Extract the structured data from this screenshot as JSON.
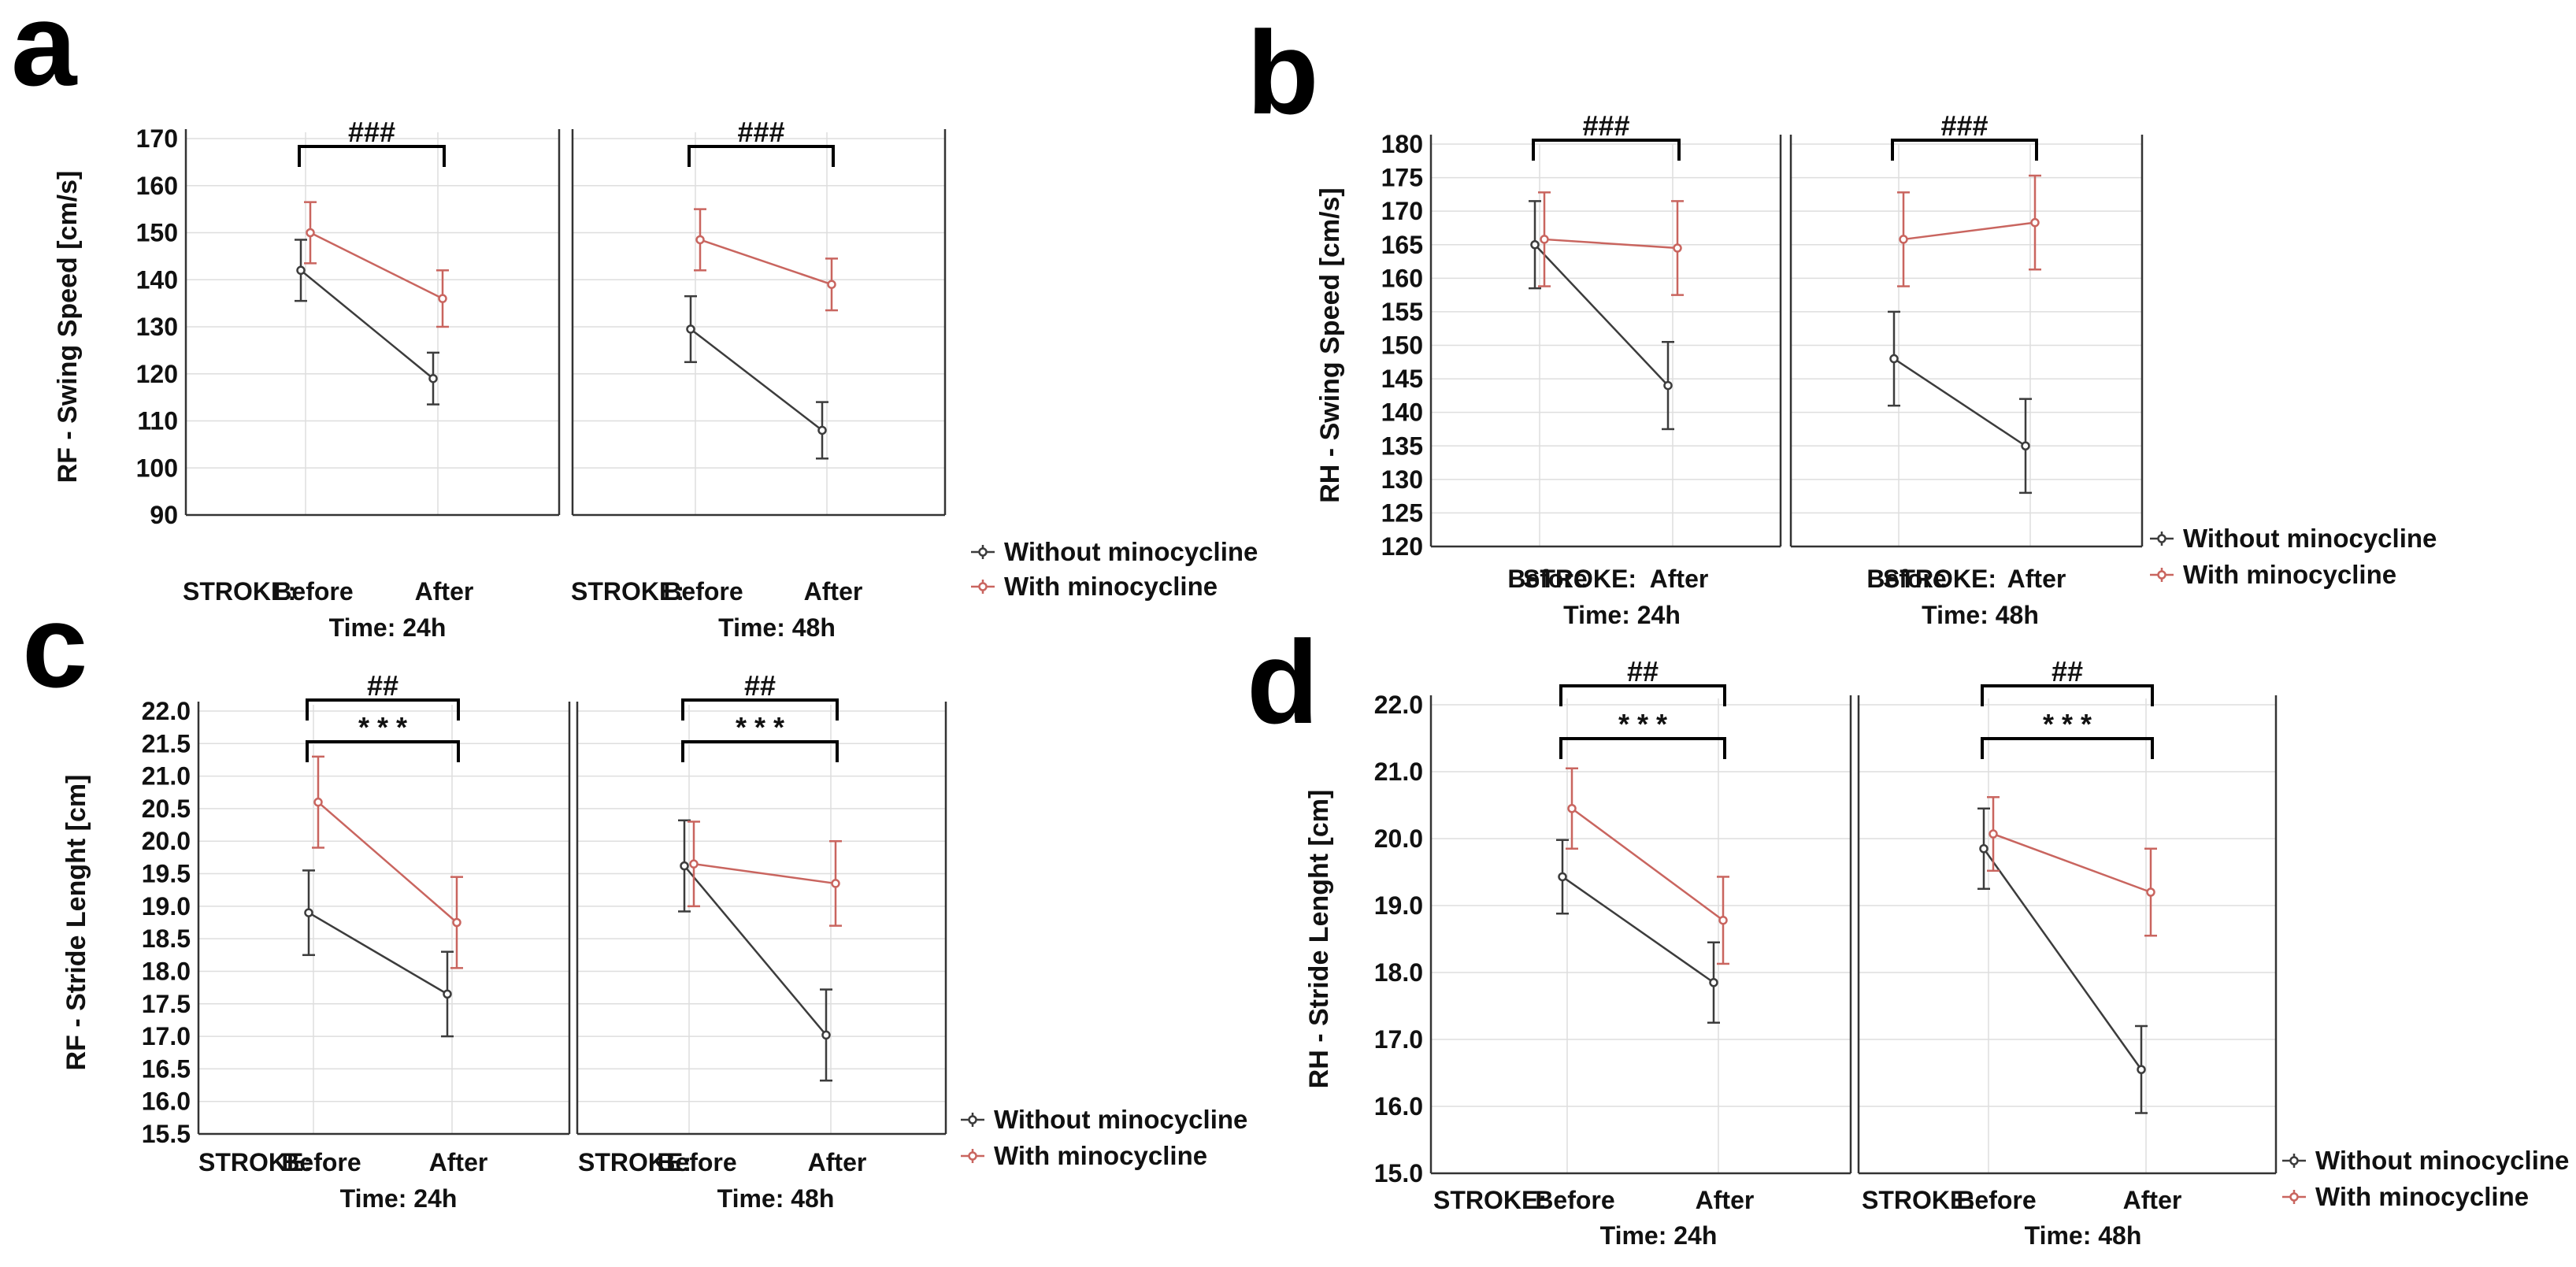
{
  "colors": {
    "without": "#3c3c3c",
    "with": "#c9655f",
    "grid": "#dedede",
    "axis": "#333333",
    "text": "#111111"
  },
  "legend": {
    "without": "Without minocycline",
    "with": "With minocycline"
  },
  "chart_data": [
    {
      "panel": "a",
      "type": "line",
      "ylabel": "RF - Swing Speed [cm/s]",
      "ylim": [
        90,
        170
      ],
      "yticks": [
        "90",
        "100",
        "110",
        "120",
        "130",
        "140",
        "150",
        "160",
        "170"
      ],
      "xlabel_prefix": "STROKE:",
      "categories": [
        "Before",
        "After"
      ],
      "subplots": [
        {
          "time_label": "Time: 24h",
          "series": [
            {
              "name": "Without minocycline",
              "values": [
                142,
                119
              ],
              "err": [
                6.5,
                5.5
              ]
            },
            {
              "name": "With minocycline",
              "values": [
                150,
                136
              ],
              "err": [
                6.5,
                6
              ]
            }
          ],
          "brackets": [
            "###"
          ]
        },
        {
          "time_label": "Time: 48h",
          "series": [
            {
              "name": "Without minocycline",
              "values": [
                129.5,
                108
              ],
              "err": [
                7,
                6
              ]
            },
            {
              "name": "With minocycline",
              "values": [
                148.5,
                139
              ],
              "err": [
                6.5,
                5.5
              ]
            }
          ],
          "brackets": [
            "###"
          ]
        }
      ]
    },
    {
      "panel": "b",
      "type": "line",
      "ylabel": "RH - Swing Speed [cm/s]",
      "ylim": [
        120,
        180
      ],
      "yticks": [
        "120",
        "125",
        "130",
        "135",
        "140",
        "145",
        "150",
        "155",
        "160",
        "165",
        "170",
        "175",
        "180"
      ],
      "xlabel_prefix": "STROKE:",
      "categories": [
        "Before",
        "After"
      ],
      "subplots": [
        {
          "time_label": "Time: 24h",
          "series": [
            {
              "name": "Without minocycline",
              "values": [
                165,
                144
              ],
              "err": [
                6.5,
                6.5
              ]
            },
            {
              "name": "With minocycline",
              "values": [
                165.8,
                164.5
              ],
              "err": [
                7,
                7
              ]
            }
          ],
          "brackets": [
            "###"
          ]
        },
        {
          "time_label": "Time: 48h",
          "series": [
            {
              "name": "Without minocycline",
              "values": [
                148,
                135
              ],
              "err": [
                7,
                7
              ]
            },
            {
              "name": "With minocycline",
              "values": [
                165.8,
                168.3
              ],
              "err": [
                7,
                7
              ]
            }
          ],
          "brackets": [
            "###"
          ]
        }
      ]
    },
    {
      "panel": "c",
      "type": "line",
      "ylabel": "RF - Stride Lenght [cm]",
      "ylim": [
        15.5,
        22.0
      ],
      "yticks": [
        "15.5",
        "16.0",
        "16.5",
        "17.0",
        "17.5",
        "18.0",
        "18.5",
        "19.0",
        "19.5",
        "20.0",
        "20.5",
        "21.0",
        "21.5",
        "22.0"
      ],
      "xlabel_prefix": "STROKE:",
      "categories": [
        "Before",
        "After"
      ],
      "subplots": [
        {
          "time_label": "Time: 24h",
          "series": [
            {
              "name": "Without minocycline",
              "values": [
                18.9,
                17.65
              ],
              "err": [
                0.65,
                0.65
              ]
            },
            {
              "name": "With minocycline",
              "values": [
                20.6,
                18.75
              ],
              "err": [
                0.7,
                0.7
              ]
            }
          ],
          "brackets": [
            "##",
            "* * *"
          ]
        },
        {
          "time_label": "Time: 48h",
          "series": [
            {
              "name": "Without minocycline",
              "values": [
                19.62,
                17.02
              ],
              "err": [
                0.7,
                0.7
              ]
            },
            {
              "name": "With minocycline",
              "values": [
                19.65,
                19.35
              ],
              "err": [
                0.65,
                0.65
              ]
            }
          ],
          "brackets": [
            "##",
            "* * *"
          ]
        }
      ]
    },
    {
      "panel": "d",
      "type": "line",
      "ylabel": "RH - Stride Lenght [cm]",
      "ylim": [
        15.0,
        22.0
      ],
      "yticks": [
        "15.0",
        "16.0",
        "17.0",
        "18.0",
        "19.0",
        "20.0",
        "21.0",
        "22.0"
      ],
      "xlabel_prefix": "STROKE:",
      "categories": [
        "Before",
        "After"
      ],
      "subplots": [
        {
          "time_label": "Time: 24h",
          "series": [
            {
              "name": "Without minocycline",
              "values": [
                19.43,
                17.85
              ],
              "err": [
                0.55,
                0.6
              ]
            },
            {
              "name": "With minocycline",
              "values": [
                20.45,
                18.78
              ],
              "err": [
                0.6,
                0.65
              ]
            }
          ],
          "brackets": [
            "##",
            "* * *"
          ]
        },
        {
          "time_label": "Time: 48h",
          "series": [
            {
              "name": "Without minocycline",
              "values": [
                19.85,
                16.55
              ],
              "err": [
                0.6,
                0.65
              ]
            },
            {
              "name": "With minocycline",
              "values": [
                20.07,
                19.2
              ],
              "err": [
                0.55,
                0.65
              ]
            }
          ],
          "brackets": [
            "##",
            "* * *"
          ]
        }
      ]
    }
  ]
}
